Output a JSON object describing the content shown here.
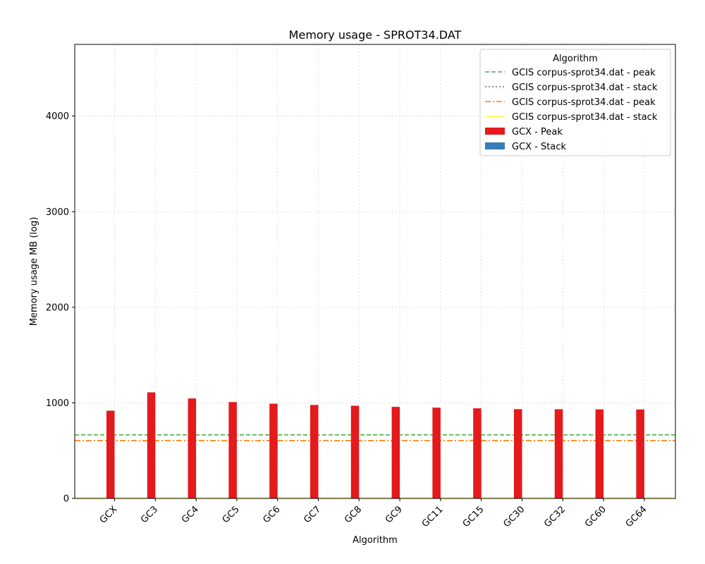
{
  "chart_data": {
    "type": "bar",
    "title": "Memory usage -  SPROT34.DAT",
    "xlabel": "Algorithm",
    "ylabel": "Memory usage MB (log)",
    "ylim": [
      0,
      4750
    ],
    "yticks": [
      0,
      1000,
      2000,
      3000,
      4000
    ],
    "grid": true,
    "legend_title": "Algorithm",
    "legend_position": "top-right",
    "categories": [
      "GCX",
      "GC3",
      "GC4",
      "GC5",
      "GC6",
      "GC7",
      "GC8",
      "GC9",
      "GC11",
      "GC15",
      "GC30",
      "GC32",
      "GC60",
      "GC64"
    ],
    "series": [
      {
        "name": "GCX - Peak",
        "color": "#e41a1c",
        "values": [
          918,
          1110,
          1046,
          1008,
          991,
          978,
          970,
          958,
          950,
          943,
          934,
          933,
          932,
          931
        ]
      },
      {
        "name": "GCX - Stack",
        "color": "#377eb8",
        "values": [
          0,
          0,
          0,
          0,
          0,
          0,
          0,
          0,
          0,
          0,
          0,
          0,
          0,
          0
        ]
      }
    ],
    "reference_lines": [
      {
        "name": "GCIS corpus-sprot34.dat - peak",
        "value": 665,
        "color": "#4daf4a",
        "style": "dashed"
      },
      {
        "name": "GCIS corpus-sprot34.dat - stack",
        "value": 0,
        "color": "#984ea3",
        "style": "dotted"
      },
      {
        "name": "GCIS corpus-sprot34.dat - peak",
        "value": 605,
        "color": "#ff7f00",
        "style": "dashdot"
      },
      {
        "name": "GCIS corpus-sprot34.dat - stack",
        "value": 4,
        "color": "#ffff33",
        "style": "solid"
      }
    ]
  }
}
